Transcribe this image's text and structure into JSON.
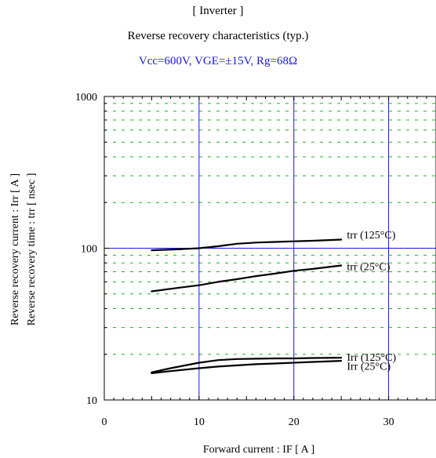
{
  "header": {
    "section": "[ Inverter ]",
    "title": "Reverse recovery characteristics  (typ.)",
    "conditions": "Vcc=600V, VGE=±15V, Rg=68Ω"
  },
  "chart_data": {
    "type": "line",
    "xlabel": "Forward current  :  IF  [ A ]",
    "ylabel_line1": "Reverse recovery current  :  Irr  [ A ]",
    "ylabel_line2": "Reverse recovery time  :  trr  [ nsec ]",
    "xlim": [
      0,
      35
    ],
    "ylim": [
      10,
      1000
    ],
    "yscale": "log",
    "x_ticks": [
      0,
      10,
      20,
      30
    ],
    "x_tick_labels": [
      "0",
      "10",
      "20",
      "30"
    ],
    "y_ticks": [
      10,
      100,
      1000
    ],
    "y_tick_labels": [
      "10",
      "100",
      "1000"
    ],
    "grid": true,
    "series": [
      {
        "name": "trr (125°C)",
        "x": [
          5,
          8,
          10,
          12,
          14,
          16,
          18,
          20,
          22,
          25
        ],
        "y": [
          97,
          98.5,
          100,
          103,
          107,
          109,
          110,
          111,
          112,
          114
        ]
      },
      {
        "name": "trr (25°C)",
        "x": [
          5,
          8,
          10,
          12,
          14,
          16,
          18,
          20,
          22,
          25
        ],
        "y": [
          52,
          55,
          57,
          60,
          62.5,
          65.5,
          68,
          71,
          73,
          77
        ]
      },
      {
        "name": "Irr (125°C)",
        "x": [
          5,
          7,
          10,
          12,
          14,
          16,
          18,
          20,
          22,
          25
        ],
        "y": [
          15.2,
          16.2,
          17.6,
          18.3,
          18.6,
          18.7,
          18.8,
          18.8,
          18.9,
          19.0
        ]
      },
      {
        "name": "Irr (25°C)",
        "x": [
          5,
          7,
          10,
          12,
          14,
          16,
          18,
          20,
          22,
          25
        ],
        "y": [
          15.0,
          15.5,
          16.2,
          16.6,
          16.9,
          17.2,
          17.4,
          17.6,
          17.8,
          18.1
        ]
      }
    ],
    "annotations": [
      "trr (125°C)",
      "trr (25°C)",
      "Irr (125°C)",
      "Irr (25°C)"
    ],
    "colors": {
      "grid_major": "#1a1adc",
      "grid_minor": "#22b422",
      "line": "#000000"
    }
  }
}
